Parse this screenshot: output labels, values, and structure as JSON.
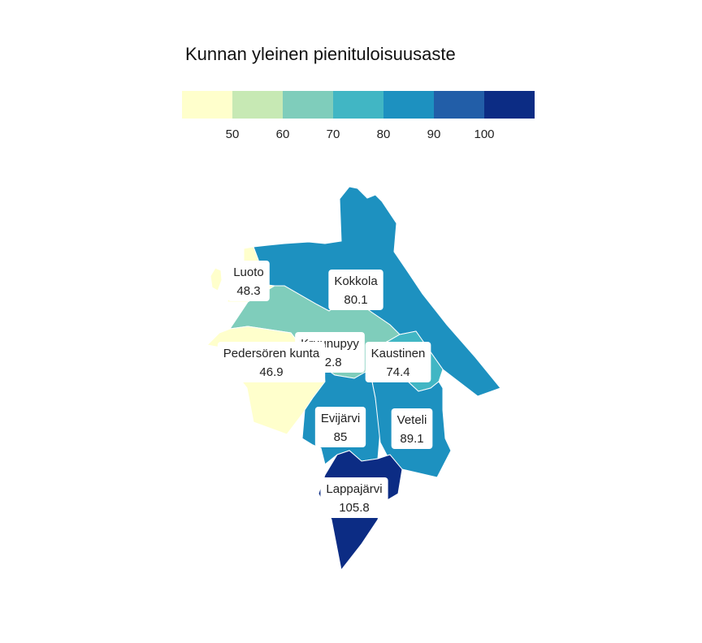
{
  "title": "Kunnan yleinen pienituloisuusaste",
  "legend": {
    "colors": [
      "#ffffcc",
      "#c7e9b4",
      "#7fcdbb",
      "#41b6c4",
      "#1d91c0",
      "#225ea8",
      "#0c2c84"
    ],
    "ticks": [
      "50",
      "60",
      "70",
      "80",
      "90",
      "100"
    ]
  },
  "municipalities": [
    {
      "name": "Luoto",
      "value": "48.3",
      "color": "#ffffcc"
    },
    {
      "name": "Kokkola",
      "value": "80.1",
      "color": "#1d91c0"
    },
    {
      "name": "Kruunupyy",
      "value": "62.8",
      "color": "#7fcdbb"
    },
    {
      "name": "Kaustinen",
      "value": "74.4",
      "color": "#41b6c4"
    },
    {
      "name": "Pedersören kunta",
      "value": "46.9",
      "color": "#ffffcc"
    },
    {
      "name": "Evijärvi",
      "value": "85",
      "color": "#1d91c0"
    },
    {
      "name": "Veteli",
      "value": "89.1",
      "color": "#1d91c0"
    },
    {
      "name": "Lappajärvi",
      "value": "105.8",
      "color": "#0c2c84"
    }
  ]
}
